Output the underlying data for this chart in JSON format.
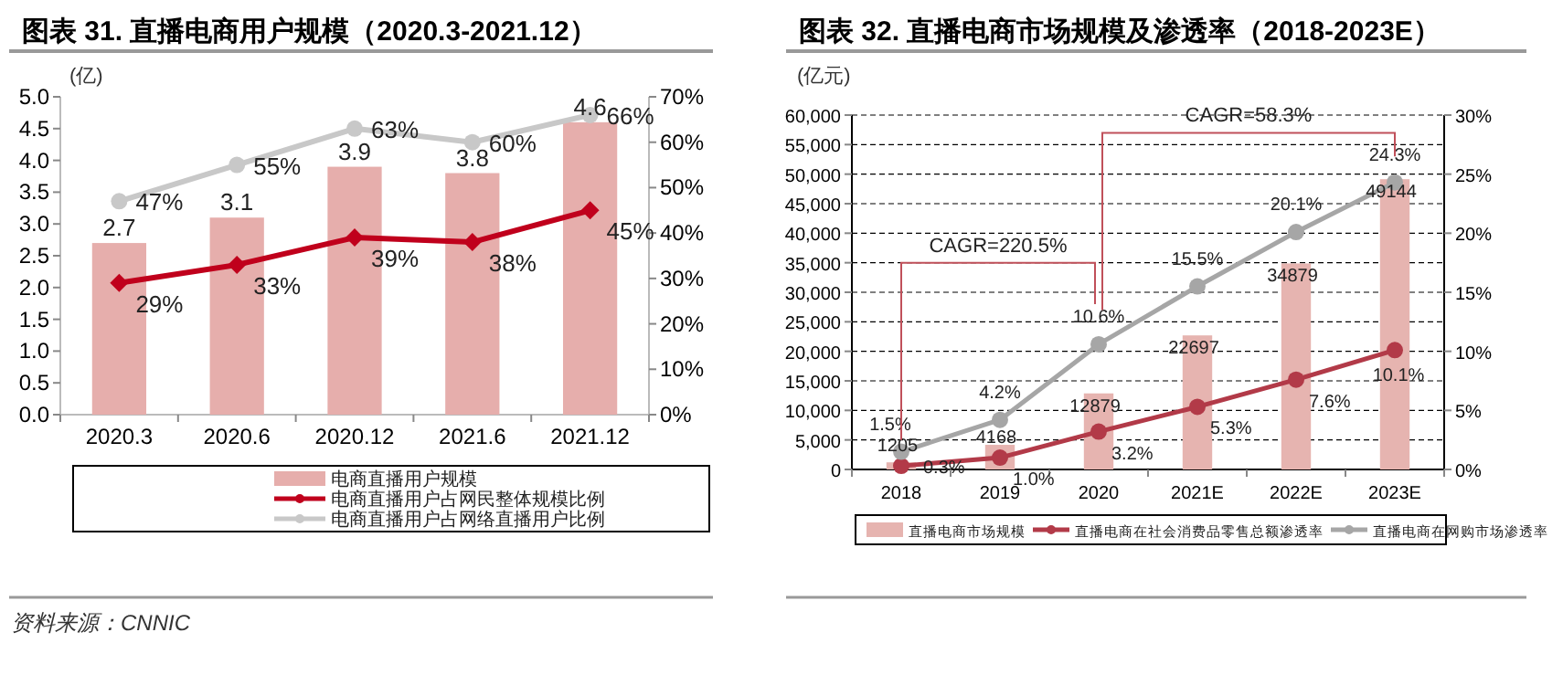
{
  "chart_data": [
    {
      "type": "bar",
      "title": "图表 31. 直播电商用户规模（2020.3-2021.12）",
      "ylabel": "(亿)",
      "categories": [
        "2020.3",
        "2020.6",
        "2020.12",
        "2021.6",
        "2021.12"
      ],
      "series": [
        {
          "name": "电商直播用户规模",
          "type": "bar",
          "color": "#e6aeac",
          "values": [
            2.7,
            3.1,
            3.9,
            3.8,
            4.6
          ]
        },
        {
          "name": "电商直播用户占网民整体规模比例",
          "type": "line",
          "axis": "y2",
          "color": "#c0001c",
          "marker": "diamond",
          "values": [
            29,
            33,
            39,
            38,
            45
          ],
          "value_labels": [
            "29%",
            "33%",
            "39%",
            "38%",
            "45%"
          ]
        },
        {
          "name": "电商直播用户占网络直播用户比例",
          "type": "line",
          "axis": "y2",
          "color": "#c8c8c8",
          "marker": "circle",
          "values": [
            47,
            55,
            63,
            60,
            66
          ],
          "value_labels": [
            "47%",
            "55%",
            "63%",
            "60%",
            "66%"
          ]
        }
      ],
      "ylim": [
        0,
        5
      ],
      "yticks": [
        {
          "value": 0,
          "label": "0.0"
        },
        {
          "value": 0.5,
          "label": "0.5"
        },
        {
          "value": 1,
          "label": "1.0"
        },
        {
          "value": 1.5,
          "label": "1.5"
        },
        {
          "value": 2,
          "label": "2.0"
        },
        {
          "value": 2.5,
          "label": "2.5"
        },
        {
          "value": 3,
          "label": "3.0"
        },
        {
          "value": 3.5,
          "label": "3.5"
        },
        {
          "value": 4,
          "label": "4.0"
        },
        {
          "value": 4.5,
          "label": "4.5"
        },
        {
          "value": 5,
          "label": "5.0"
        }
      ],
      "y2lim": [
        0,
        70
      ],
      "y2ticks": [
        {
          "value": 0,
          "label": "0%"
        },
        {
          "value": 10,
          "label": "10%"
        },
        {
          "value": 20,
          "label": "20%"
        },
        {
          "value": 30,
          "label": "30%"
        },
        {
          "value": 40,
          "label": "40%"
        },
        {
          "value": 50,
          "label": "50%"
        },
        {
          "value": 60,
          "label": "60%"
        },
        {
          "value": 70,
          "label": "70%"
        }
      ],
      "data_labels": true,
      "legend": "bottom",
      "grid": false,
      "annotations": [
        "资料来源：CNNIC"
      ]
    },
    {
      "type": "bar",
      "title": "图表 32. 直播电商市场规模及渗透率（2018-2023E）",
      "ylabel": "(亿元)",
      "categories": [
        "2018",
        "2019",
        "2020",
        "2021E",
        "2022E",
        "2023E"
      ],
      "series": [
        {
          "name": "直播电商市场规模",
          "type": "bar",
          "color": "#e6b4b0",
          "values": [
            1205,
            4168,
            12879,
            22697,
            34879,
            49144
          ]
        },
        {
          "name": "直播电商在社会消费品零售总额渗透率",
          "type": "line",
          "axis": "y2",
          "color": "#b23a48",
          "marker": "circle",
          "values": [
            0.3,
            1.0,
            3.2,
            5.3,
            7.6,
            10.1
          ],
          "value_labels": [
            "0.3%",
            "1.0%",
            "3.2%",
            "5.3%",
            "7.6%",
            "10.1%"
          ]
        },
        {
          "name": "直播电商在网购市场渗透率",
          "type": "line",
          "axis": "y2",
          "color": "#a6a6a6",
          "marker": "circle",
          "values": [
            1.5,
            4.2,
            10.6,
            15.5,
            20.1,
            24.3
          ],
          "value_labels": [
            "1.5%",
            "4.2%",
            "10.6%",
            "15.5%",
            "20.1%",
            "24.3%"
          ]
        }
      ],
      "ylim": [
        0,
        60000
      ],
      "yticks": [
        {
          "value": 0,
          "label": "0"
        },
        {
          "value": 5000,
          "label": "5,000"
        },
        {
          "value": 10000,
          "label": "10,000"
        },
        {
          "value": 15000,
          "label": "15,000"
        },
        {
          "value": 20000,
          "label": "20,000"
        },
        {
          "value": 25000,
          "label": "25,000"
        },
        {
          "value": 30000,
          "label": "30,000"
        },
        {
          "value": 35000,
          "label": "35,000"
        },
        {
          "value": 40000,
          "label": "40,000"
        },
        {
          "value": 45000,
          "label": "45,000"
        },
        {
          "value": 50000,
          "label": "50,000"
        },
        {
          "value": 55000,
          "label": "55,000"
        },
        {
          "value": 60000,
          "label": "60,000"
        }
      ],
      "y2lim": [
        0,
        30
      ],
      "y2ticks": [
        {
          "value": 0,
          "label": "0%"
        },
        {
          "value": 5,
          "label": "5%"
        },
        {
          "value": 10,
          "label": "10%"
        },
        {
          "value": 15,
          "label": "15%"
        },
        {
          "value": 20,
          "label": "20%"
        },
        {
          "value": 25,
          "label": "25%"
        },
        {
          "value": 30,
          "label": "30%"
        }
      ],
      "data_labels": true,
      "legend": "bottom",
      "grid": "y",
      "annotations": [
        "CAGR=220.5%",
        "CAGR=58.3%"
      ]
    }
  ]
}
